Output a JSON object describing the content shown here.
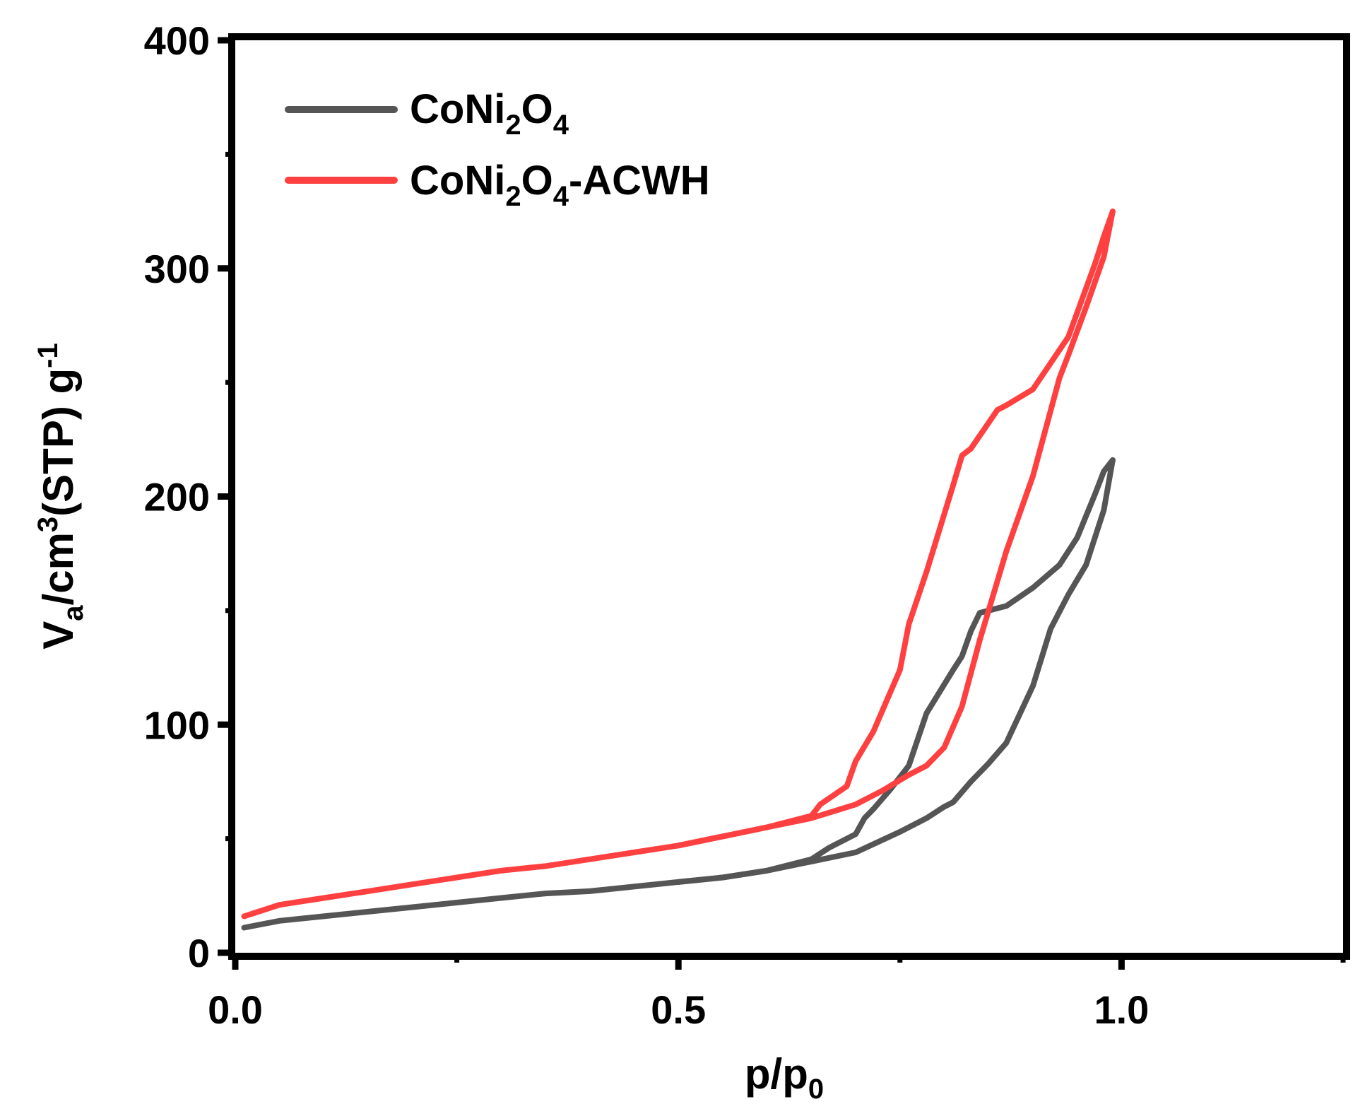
{
  "chart_data": {
    "type": "line",
    "title": "",
    "xlabel": {
      "main": "p/p",
      "sub": "0"
    },
    "ylabel": {
      "v": "V",
      "v_sub": "a",
      "cm": "/cm",
      "cm_sup": "3",
      "stp": "(STP) g",
      "g_sup": "-1"
    },
    "xlim": [
      0.0,
      1.25
    ],
    "ylim": [
      0,
      400
    ],
    "xticks": [
      0.0,
      0.5,
      1.0
    ],
    "xtick_labels": [
      "0.0",
      "0.5",
      "1.0"
    ],
    "xticks_minor": [
      0.25,
      0.75,
      1.25
    ],
    "yticks": [
      0,
      100,
      200,
      300,
      400
    ],
    "ytick_labels": [
      "0",
      "100",
      "200",
      "300",
      "400"
    ],
    "yticks_minor": [
      50,
      150,
      250,
      350
    ],
    "legend_position": "top-left",
    "series": [
      {
        "name": "CoNi2O4",
        "legend": {
          "base": "CoNi",
          "sub1": "2",
          "mid": "O",
          "sub2": "4",
          "suffix": ""
        },
        "color": "#555555",
        "adsorption": [
          [
            0.01,
            11
          ],
          [
            0.05,
            14
          ],
          [
            0.1,
            16
          ],
          [
            0.15,
            18
          ],
          [
            0.2,
            20
          ],
          [
            0.25,
            22
          ],
          [
            0.3,
            24
          ],
          [
            0.35,
            26
          ],
          [
            0.4,
            27
          ],
          [
            0.45,
            29
          ],
          [
            0.5,
            31
          ],
          [
            0.55,
            33
          ],
          [
            0.6,
            36
          ],
          [
            0.65,
            40
          ],
          [
            0.7,
            44
          ],
          [
            0.75,
            53
          ],
          [
            0.78,
            59
          ],
          [
            0.8,
            64
          ],
          [
            0.81,
            66
          ],
          [
            0.83,
            75
          ],
          [
            0.85,
            83
          ],
          [
            0.87,
            92
          ],
          [
            0.9,
            117
          ],
          [
            0.92,
            142
          ],
          [
            0.94,
            157
          ],
          [
            0.96,
            170
          ],
          [
            0.98,
            194
          ],
          [
            0.99,
            216
          ]
        ],
        "desorption": [
          [
            0.99,
            216
          ],
          [
            0.98,
            211
          ],
          [
            0.97,
            201
          ],
          [
            0.95,
            182
          ],
          [
            0.93,
            170
          ],
          [
            0.9,
            160
          ],
          [
            0.87,
            152
          ],
          [
            0.84,
            149
          ],
          [
            0.83,
            141
          ],
          [
            0.82,
            130
          ],
          [
            0.81,
            124
          ],
          [
            0.78,
            105
          ],
          [
            0.76,
            82
          ],
          [
            0.74,
            72
          ],
          [
            0.72,
            63
          ],
          [
            0.71,
            59
          ],
          [
            0.7,
            52
          ],
          [
            0.67,
            46
          ],
          [
            0.65,
            41
          ],
          [
            0.6,
            36
          ],
          [
            0.55,
            33
          ],
          [
            0.5,
            31
          ]
        ]
      },
      {
        "name": "CoNi2O4-ACWH",
        "legend": {
          "base": "CoNi",
          "sub1": "2",
          "mid": "O",
          "sub2": "4",
          "suffix": "-ACWH"
        },
        "color": "#ff4040",
        "adsorption": [
          [
            0.01,
            16
          ],
          [
            0.05,
            21
          ],
          [
            0.1,
            24
          ],
          [
            0.15,
            27
          ],
          [
            0.2,
            30
          ],
          [
            0.25,
            33
          ],
          [
            0.3,
            36
          ],
          [
            0.35,
            38
          ],
          [
            0.4,
            41
          ],
          [
            0.45,
            44
          ],
          [
            0.5,
            47
          ],
          [
            0.55,
            51
          ],
          [
            0.6,
            55
          ],
          [
            0.65,
            59
          ],
          [
            0.7,
            65
          ],
          [
            0.73,
            71
          ],
          [
            0.76,
            78
          ],
          [
            0.78,
            82
          ],
          [
            0.8,
            90
          ],
          [
            0.82,
            108
          ],
          [
            0.84,
            137
          ],
          [
            0.87,
            176
          ],
          [
            0.9,
            209
          ],
          [
            0.93,
            252
          ],
          [
            0.94,
            262
          ],
          [
            0.96,
            283
          ],
          [
            0.98,
            305
          ],
          [
            0.99,
            325
          ]
        ],
        "desorption": [
          [
            0.99,
            325
          ],
          [
            0.98,
            314
          ],
          [
            0.97,
            302
          ],
          [
            0.94,
            270
          ],
          [
            0.9,
            247
          ],
          [
            0.87,
            240
          ],
          [
            0.86,
            238
          ],
          [
            0.83,
            221
          ],
          [
            0.82,
            218
          ],
          [
            0.81,
            205
          ],
          [
            0.78,
            167
          ],
          [
            0.76,
            144
          ],
          [
            0.75,
            124
          ],
          [
            0.72,
            97
          ],
          [
            0.7,
            84
          ],
          [
            0.69,
            73
          ],
          [
            0.66,
            65
          ],
          [
            0.65,
            60
          ],
          [
            0.6,
            55
          ],
          [
            0.55,
            51
          ],
          [
            0.5,
            47
          ]
        ]
      }
    ]
  }
}
